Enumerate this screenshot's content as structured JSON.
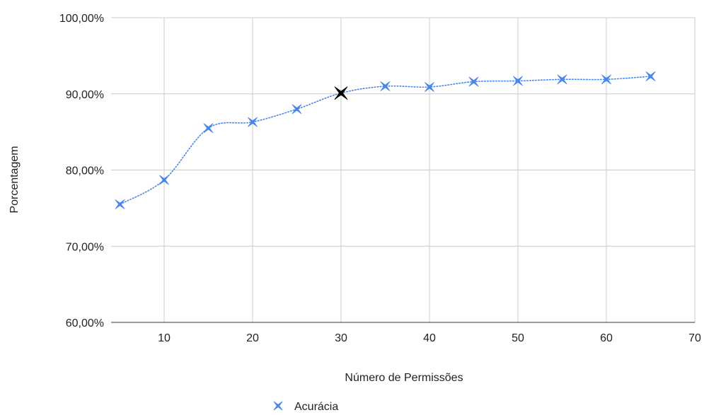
{
  "chart_data": {
    "type": "line",
    "title": "",
    "xlabel": "Número de Permissões",
    "ylabel": "Porcentagem",
    "xlim": [
      4,
      70
    ],
    "ylim": [
      60,
      100
    ],
    "x_ticks": [
      10,
      20,
      30,
      40,
      50,
      60,
      70
    ],
    "y_ticks": [
      60,
      70,
      80,
      90,
      100
    ],
    "x_tick_labels": [
      "10",
      "20",
      "30",
      "40",
      "50",
      "60",
      "70"
    ],
    "y_tick_labels": [
      "60,00%",
      "70,00%",
      "80,00%",
      "90,00%",
      "100,00%"
    ],
    "grid": true,
    "legend_position": "bottom-center",
    "series": [
      {
        "name": "Acurácia",
        "color": "#4a86e8",
        "line_style": "dotted-smooth",
        "marker": "x",
        "x": [
          5,
          10,
          15,
          20,
          25,
          30,
          35,
          40,
          45,
          50,
          55,
          60,
          65
        ],
        "values": [
          75.5,
          78.7,
          85.5,
          86.3,
          88.0,
          90.1,
          91.0,
          90.9,
          91.6,
          91.7,
          91.9,
          91.9,
          92.3
        ],
        "highlight": {
          "x": 30,
          "color": "#000000"
        }
      }
    ]
  }
}
